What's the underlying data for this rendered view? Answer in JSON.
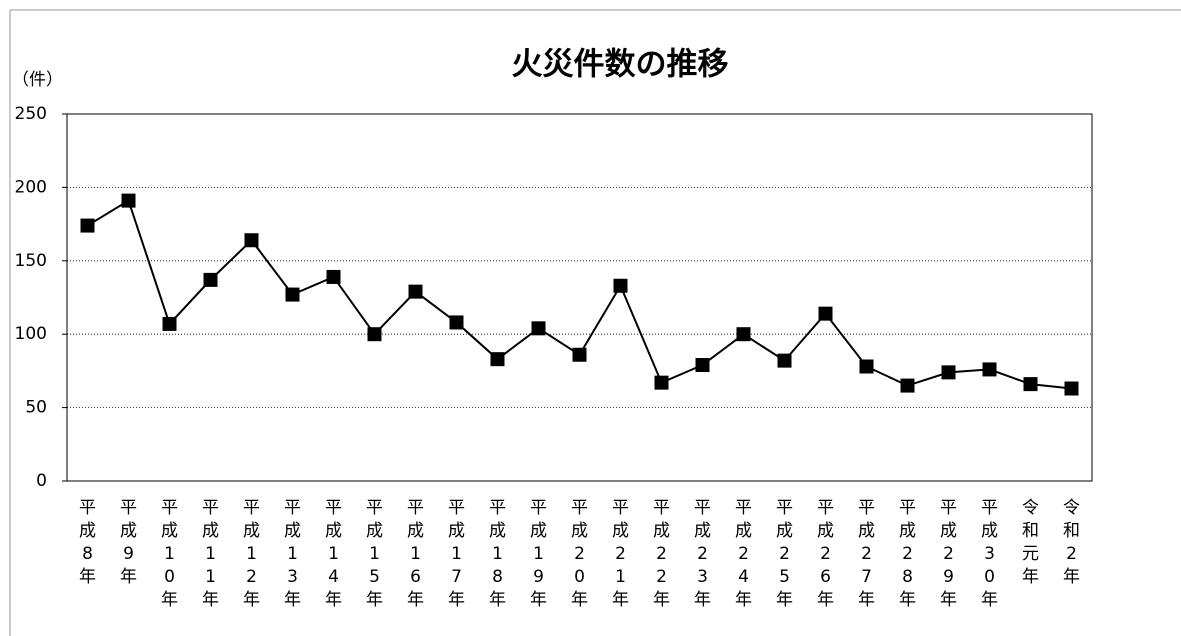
{
  "chart_data": {
    "type": "line",
    "title": "火災件数の推移",
    "ylabel": "（件）",
    "categories": [
      "平成8年",
      "平成9年",
      "平成10年",
      "平成11年",
      "平成12年",
      "平成13年",
      "平成14年",
      "平成15年",
      "平成16年",
      "平成17年",
      "平成18年",
      "平成19年",
      "平成20年",
      "平成21年",
      "平成22年",
      "平成23年",
      "平成24年",
      "平成25年",
      "平成26年",
      "平成27年",
      "平成28年",
      "平成29年",
      "平成30年",
      "令和元年",
      "令和2年"
    ],
    "values": [
      174,
      191,
      107,
      137,
      164,
      127,
      139,
      100,
      129,
      108,
      83,
      104,
      86,
      133,
      67,
      79,
      100,
      82,
      114,
      78,
      65,
      74,
      76,
      66,
      63
    ],
    "color": "#000000",
    "ylim": [
      0,
      250
    ],
    "yticks": [
      0,
      50,
      100,
      150,
      200,
      250
    ],
    "grid": true
  }
}
